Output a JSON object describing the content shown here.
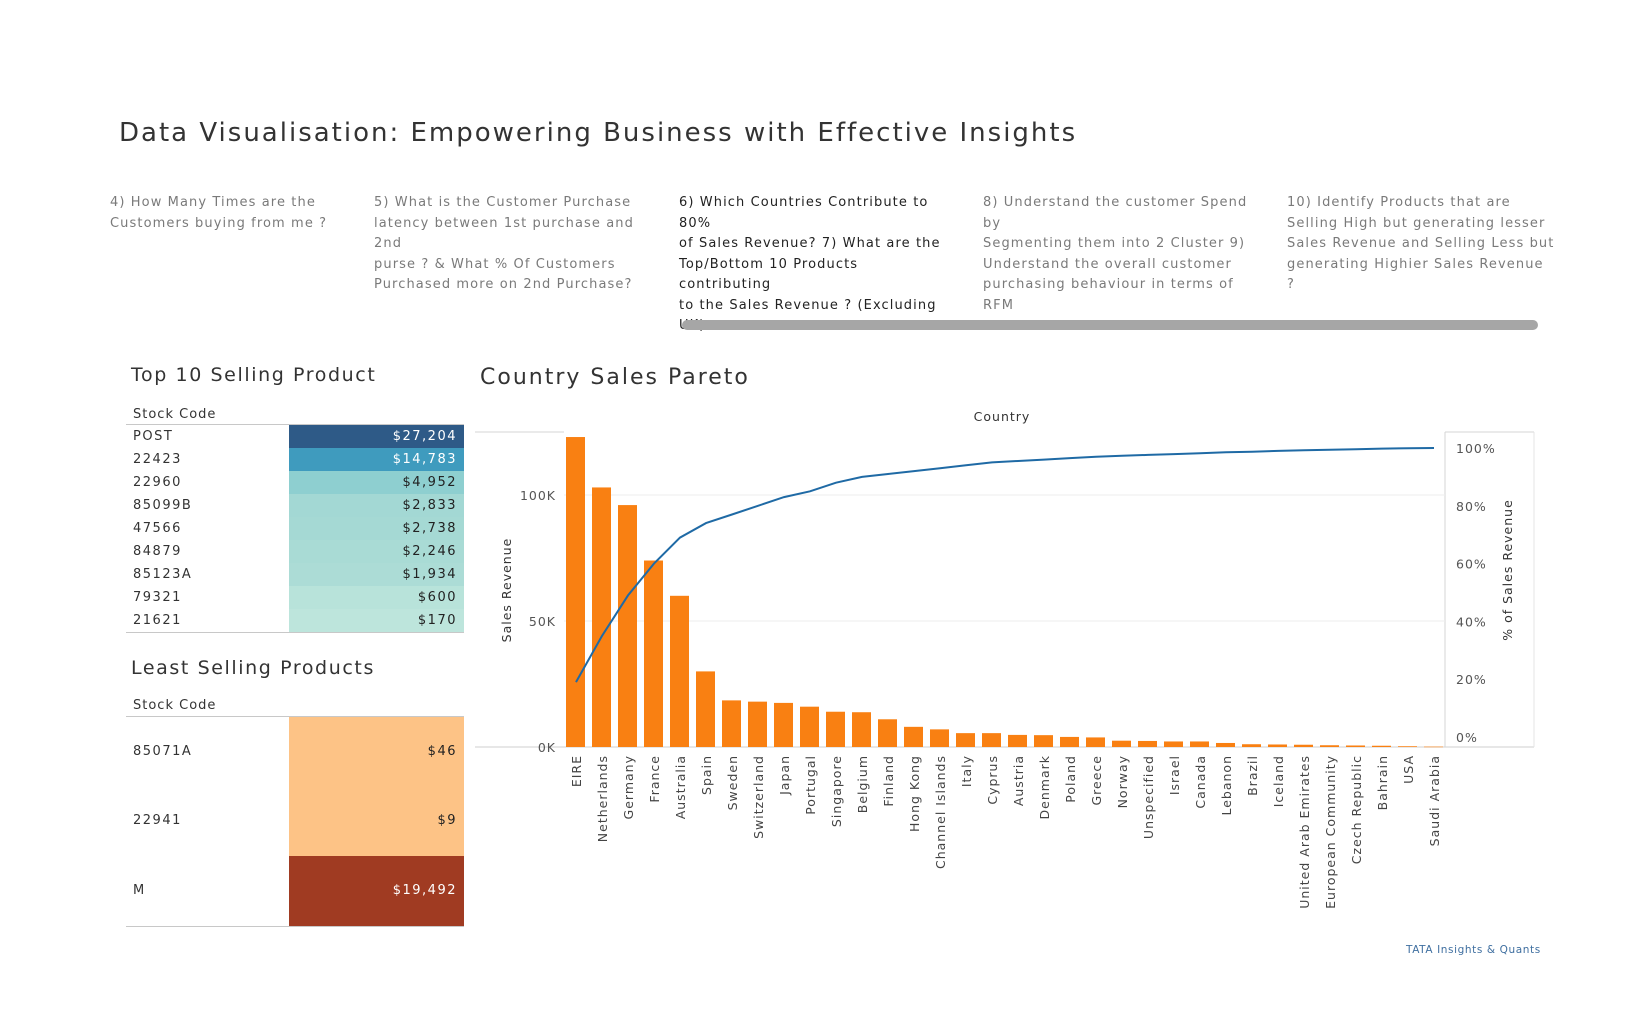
{
  "title": "Data Visualisation: Empowering Business with Effective Insights",
  "story_tabs": [
    {
      "text": "4) How Many Times are the\nCustomers buying from me ?",
      "active": false
    },
    {
      "text": "5) What is the Customer Purchase\nlatency between 1st purchase and 2nd\npurse ? & What % Of Customers\nPurchased more on 2nd Purchase?",
      "active": false
    },
    {
      "text": "6) Which Countries Contribute to 80%\nof Sales Revenue?   7) What are the\nTop/Bottom 10 Products contributing\nto the Sales Revenue ? (Excluding UK)",
      "active": true
    },
    {
      "text": "8) Understand the customer Spend by\nSegmenting them into 2 Cluster   9)\nUnderstand the overall customer\npurchasing behaviour  in terms of RFM",
      "active": false
    },
    {
      "text": "10) Identify Products that are\nSelling High but generating lesser\nSales Revenue and Selling Less but\ngenerating Highier Sales Revenue ?",
      "active": false
    }
  ],
  "top_products": {
    "title": "Top 10  Selling  Product",
    "column_header": "Stock Code",
    "rows": [
      {
        "code": "POST",
        "value": "$27,204",
        "color": "#2e5a87",
        "text_color": "#ffffff"
      },
      {
        "code": "22423",
        "value": "$14,783",
        "color": "#3f9bbe",
        "text_color": "#ffffff"
      },
      {
        "code": "22960",
        "value": "$4,952",
        "color": "#8ecfd0",
        "text_color": "#222222"
      },
      {
        "code": "85099B",
        "value": "$2,833",
        "color": "#a3d8d4",
        "text_color": "#222222"
      },
      {
        "code": "47566",
        "value": "$2,738",
        "color": "#a5d9d4",
        "text_color": "#222222"
      },
      {
        "code": "84879",
        "value": "$2,246",
        "color": "#a9dbd5",
        "text_color": "#222222"
      },
      {
        "code": "85123A",
        "value": "$1,934",
        "color": "#acdcd6",
        "text_color": "#222222"
      },
      {
        "code": "79321",
        "value": "$600",
        "color": "#b8e3da",
        "text_color": "#222222"
      },
      {
        "code": "21621",
        "value": "$170",
        "color": "#bde5dc",
        "text_color": "#222222"
      }
    ]
  },
  "least_products": {
    "title": "Least Selling Products",
    "column_header": "Stock Code",
    "rows": [
      {
        "code": "85071A",
        "value": "$46",
        "color": "#fdc386",
        "text_color": "#222222"
      },
      {
        "code": "22941",
        "value": "$9",
        "color": "#fdc386",
        "text_color": "#222222"
      },
      {
        "code": "M",
        "value": "$19,492",
        "color": "#a03b22",
        "text_color": "#ffffff"
      }
    ]
  },
  "footer": "TATA Insights & Quants",
  "chart_data": {
    "type": "bar",
    "title": "Country Sales Pareto",
    "column_header": "Country",
    "ylabel": "Sales Revenue",
    "y2label": "% of Sales Revenue",
    "ylim": [
      0,
      125000
    ],
    "y2lim": [
      0,
      1.0
    ],
    "yticks": [
      0,
      50000,
      100000
    ],
    "ytick_labels": [
      "0K",
      "50K",
      "100K"
    ],
    "y2ticks": [
      0,
      0.2,
      0.4,
      0.6,
      0.8,
      1.0
    ],
    "y2tick_labels": [
      "0%",
      "20%",
      "40%",
      "60%",
      "80%",
      "100%"
    ],
    "bar_color": "#f98012",
    "line_color": "#1f6aa5",
    "grid": true,
    "categories": [
      "EIRE",
      "Netherlands",
      "Germany",
      "France",
      "Australia",
      "Spain",
      "Sweden",
      "Switzerland",
      "Japan",
      "Portugal",
      "Singapore",
      "Belgium",
      "Finland",
      "Hong Kong",
      "Channel Islands",
      "Italy",
      "Cyprus",
      "Austria",
      "Denmark",
      "Poland",
      "Greece",
      "Norway",
      "Unspecified",
      "Israel",
      "Canada",
      "Lebanon",
      "Brazil",
      "Iceland",
      "United Arab Emirates",
      "European Community",
      "Czech Republic",
      "Bahrain",
      "USA",
      "Saudi Arabia"
    ],
    "series": [
      {
        "name": "Sales Revenue",
        "values": [
          123000,
          103000,
          96000,
          74000,
          60000,
          30000,
          18500,
          18000,
          17500,
          16000,
          14000,
          13800,
          11000,
          8000,
          7000,
          5500,
          5500,
          4800,
          4700,
          4000,
          3800,
          2500,
          2400,
          2200,
          2200,
          1600,
          1100,
          1000,
          900,
          700,
          600,
          500,
          300,
          150
        ]
      },
      {
        "name": "% of Sales Revenue",
        "values": [
          0.19,
          0.35,
          0.49,
          0.6,
          0.69,
          0.74,
          0.77,
          0.8,
          0.83,
          0.85,
          0.88,
          0.9,
          0.91,
          0.92,
          0.93,
          0.94,
          0.95,
          0.955,
          0.96,
          0.965,
          0.97,
          0.973,
          0.976,
          0.979,
          0.982,
          0.985,
          0.987,
          0.99,
          0.992,
          0.994,
          0.996,
          0.998,
          0.999,
          1.0
        ]
      }
    ]
  }
}
